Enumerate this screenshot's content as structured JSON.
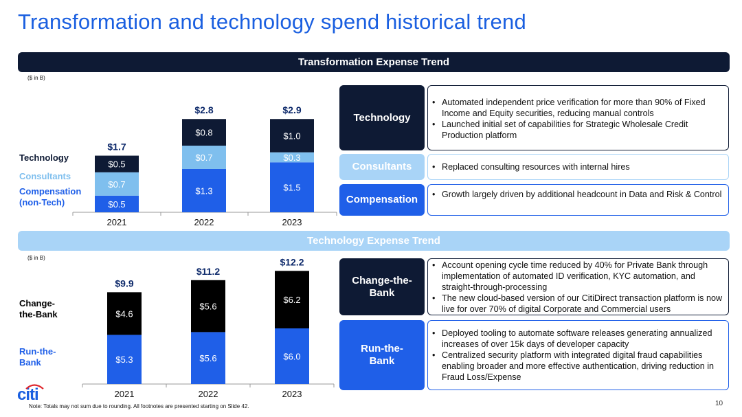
{
  "page": {
    "title": "Transformation and technology spend historical trend",
    "footnote": "Note:  Totals may not sum due to rounding. All footnotes are presented starting on Slide 42.",
    "page_number": "10",
    "logo_text": "citi"
  },
  "transformation": {
    "band_title": "Transformation Expense Trend",
    "unit": "($ in B)",
    "legend": [
      {
        "label": "Technology",
        "color": "#0e1a34"
      },
      {
        "label": "Consultants",
        "color": "#7fbfee"
      },
      {
        "label": "Compensation\n(non-Tech)",
        "color": "#1f5fe8"
      }
    ],
    "cards": [
      {
        "label": "Technology",
        "style": "dark",
        "bullets": [
          "Automated independent price verification for more than 90% of Fixed Income and Equity securities, reducing manual controls",
          "Launched initial set of capabilities for Strategic Wholesale Credit Production platform"
        ]
      },
      {
        "label": "Consultants",
        "style": "light",
        "bullets": [
          "Replaced consulting resources with internal hires"
        ]
      },
      {
        "label": "Compensation",
        "style": "blue",
        "bullets": [
          "Growth largely driven by additional headcount in Data and Risk & Control"
        ]
      }
    ]
  },
  "technology": {
    "band_title": "Technology Expense Trend",
    "unit": "($ in B)",
    "legend": [
      {
        "label": "Change-\nthe-Bank",
        "color": "#000000"
      },
      {
        "label": "Run-the-\nBank",
        "color": "#1f5fe8"
      }
    ],
    "cards": [
      {
        "label": "Change-the-\nBank",
        "style": "dark",
        "bullets": [
          "Account opening cycle time reduced by 40% for Private Bank through implementation of automated ID verification, KYC automation, and straight-through-processing",
          "The new cloud-based version of our CitiDirect transaction platform is now live for over 70% of digital Corporate and Commercial users"
        ]
      },
      {
        "label": "Run-the-\nBank",
        "style": "blue",
        "bullets": [
          "Deployed tooling to automate software releases generating annualized increases of over 15k days of developer capacity",
          "Centralized security platform with integrated digital fraud capabilities enabling broader and more effective authentication, driving reduction in Fraud Loss/Expense"
        ]
      }
    ]
  },
  "chart_data": [
    {
      "type": "bar",
      "stacked": true,
      "title": "Transformation Expense Trend",
      "unit": "($ in B)",
      "categories": [
        "2021",
        "2022",
        "2023"
      ],
      "series": [
        {
          "name": "Compensation (non-Tech)",
          "values": [
            0.5,
            1.3,
            1.5
          ],
          "labels": [
            "$0.5",
            "$1.3",
            "$1.5"
          ],
          "color": "#1f5fe8",
          "label_color": "#ffffff"
        },
        {
          "name": "Consultants",
          "values": [
            0.7,
            0.7,
            0.3
          ],
          "labels": [
            "$0.7",
            "$0.7",
            "$0.3"
          ],
          "color": "#7fbfee",
          "label_color": "#ffffff"
        },
        {
          "name": "Technology",
          "values": [
            0.5,
            0.8,
            1.0
          ],
          "labels": [
            "$0.5",
            "$0.8",
            "$1.0"
          ],
          "color": "#0e1a34",
          "label_color": "#ffffff"
        }
      ],
      "totals": [
        "$1.7",
        "$2.8",
        "$2.9"
      ],
      "ylim": [
        0,
        3.3
      ],
      "grid": false
    },
    {
      "type": "bar",
      "stacked": true,
      "title": "Technology Expense Trend",
      "unit": "($ in B)",
      "categories": [
        "2021",
        "2022",
        "2023"
      ],
      "series": [
        {
          "name": "Run-the-Bank",
          "values": [
            5.3,
            5.6,
            6.0
          ],
          "labels": [
            "$5.3",
            "$5.6",
            "$6.0"
          ],
          "color": "#1f5fe8",
          "label_color": "#ffffff"
        },
        {
          "name": "Change-the-Bank",
          "values": [
            4.6,
            5.6,
            6.2
          ],
          "labels": [
            "$4.6",
            "$5.6",
            "$6.2"
          ],
          "color": "#000000",
          "label_color": "#ffffff"
        }
      ],
      "totals": [
        "$9.9",
        "$11.2",
        "$12.2"
      ],
      "ylim": [
        0,
        14
      ],
      "grid": false
    }
  ]
}
